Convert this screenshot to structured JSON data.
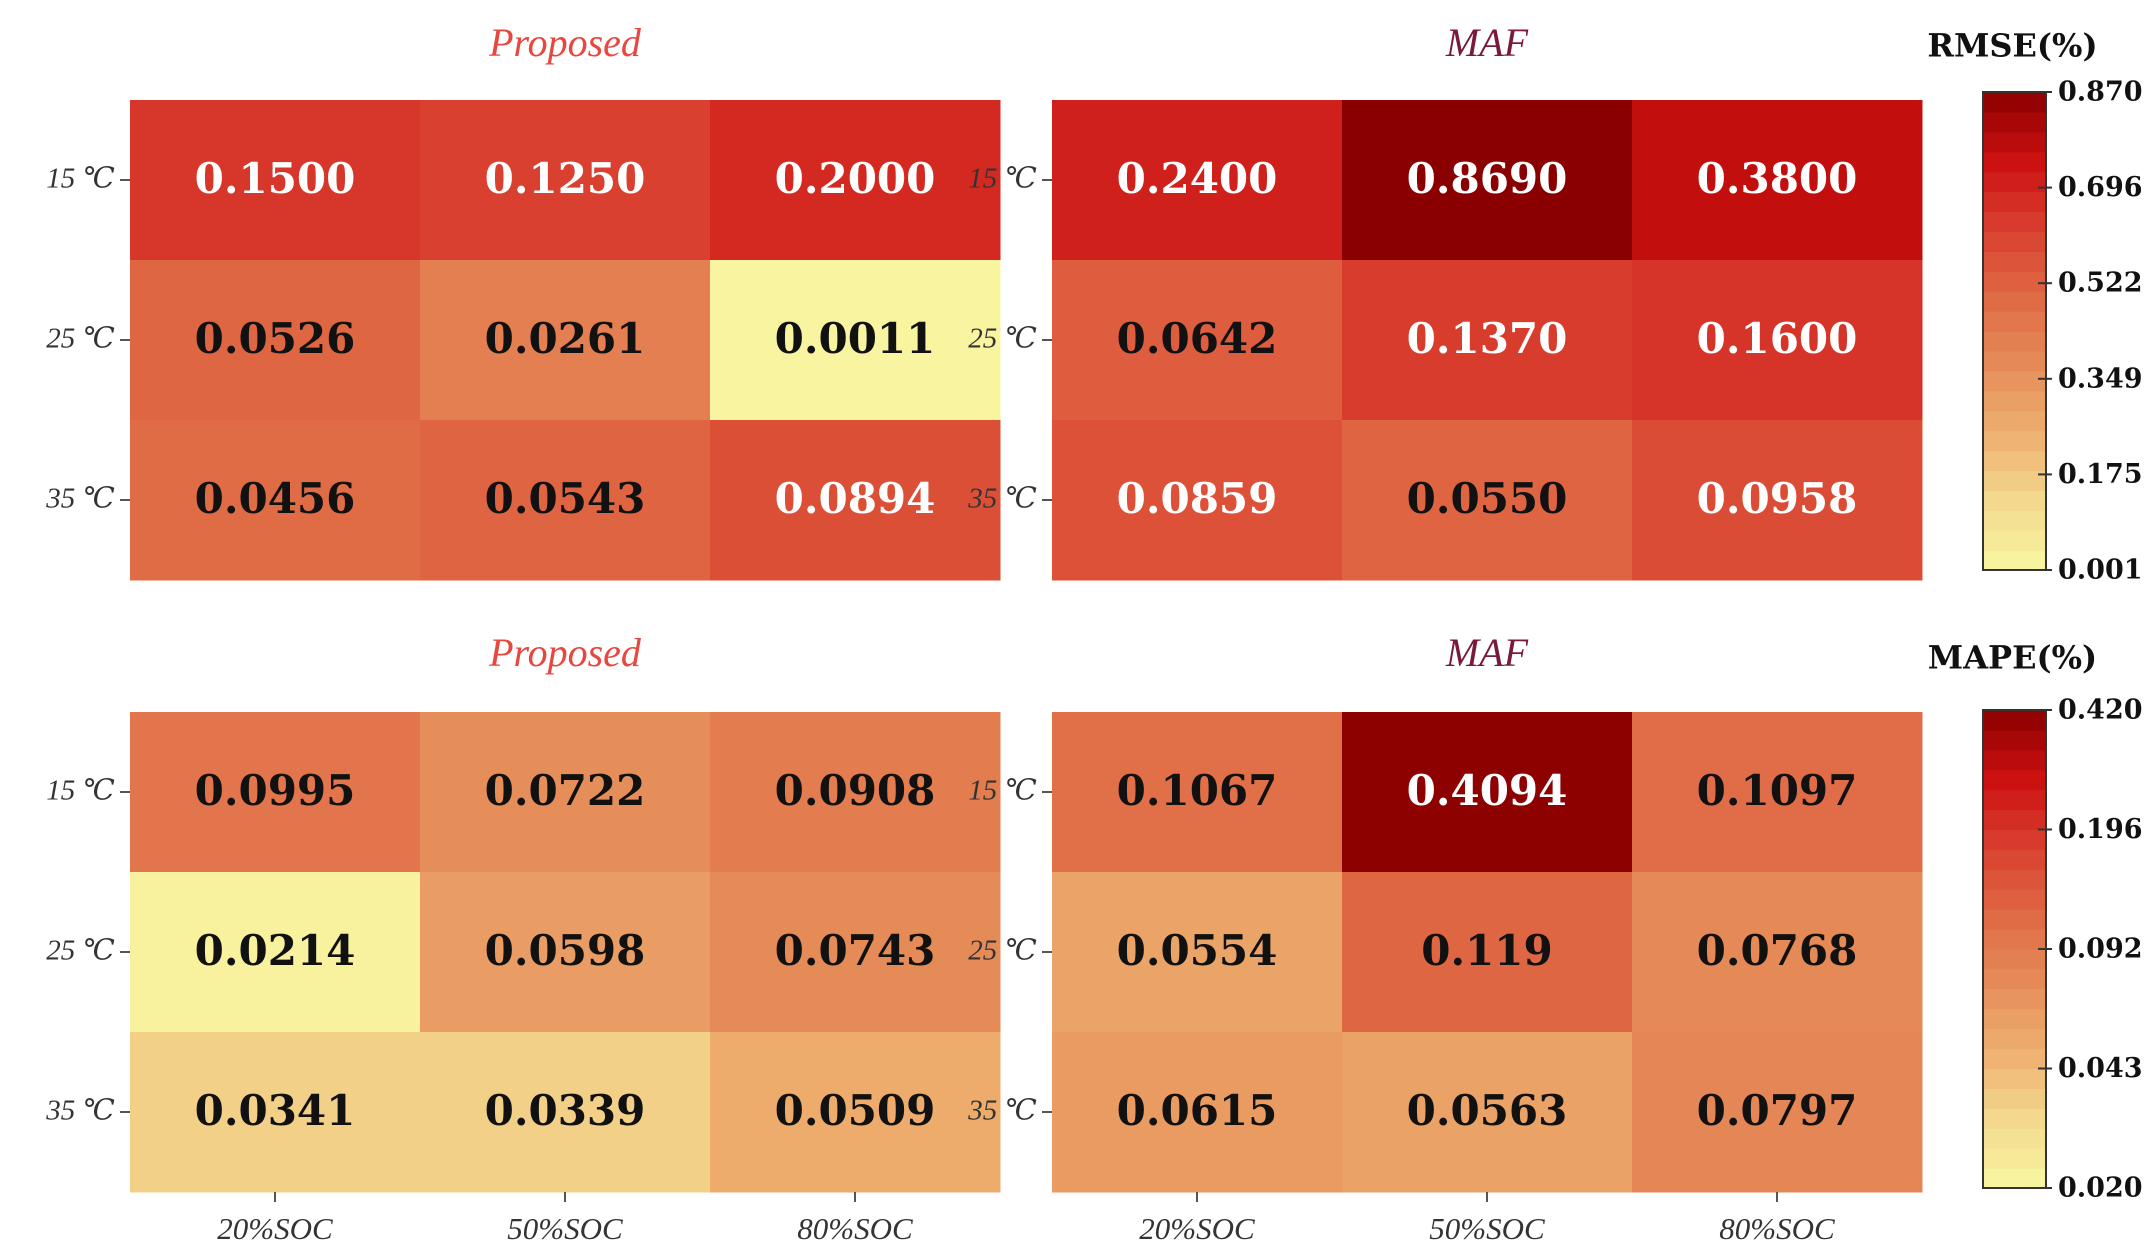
{
  "chart_data": [
    {
      "type": "heatmap",
      "metric": "RMSE",
      "title": "Proposed",
      "title_color": "#e8473f",
      "rows": [
        "15 ℃",
        "25 ℃",
        "35 ℃"
      ],
      "columns": [
        "20%SOC",
        "50%SOC",
        "80%SOC"
      ],
      "values": [
        [
          0.15,
          0.125,
          0.2
        ],
        [
          0.0526,
          0.0261,
          0.0011
        ],
        [
          0.0456,
          0.0543,
          0.0894
        ]
      ],
      "labels": [
        [
          "0.1500",
          "0.1250",
          "0.2000"
        ],
        [
          "0.0526",
          "0.0261",
          "0.0011"
        ],
        [
          "0.0456",
          "0.0543",
          "0.0894"
        ]
      ]
    },
    {
      "type": "heatmap",
      "metric": "RMSE",
      "title": "MAF",
      "title_color": "#7a1a3a",
      "rows": [
        "15 ℃",
        "25 ℃",
        "35 ℃"
      ],
      "columns": [
        "20%SOC",
        "50%SOC",
        "80%SOC"
      ],
      "values": [
        [
          0.24,
          0.869,
          0.38
        ],
        [
          0.0642,
          0.137,
          0.16
        ],
        [
          0.0859,
          0.055,
          0.0958
        ]
      ],
      "labels": [
        [
          "0.2400",
          "0.8690",
          "0.3800"
        ],
        [
          "0.0642",
          "0.1370",
          "0.1600"
        ],
        [
          "0.0859",
          "0.0550",
          "0.0958"
        ]
      ]
    },
    {
      "type": "heatmap",
      "metric": "MAPE",
      "title": "Proposed",
      "title_color": "#e8473f",
      "rows": [
        "15 ℃",
        "25 ℃",
        "35 ℃"
      ],
      "columns": [
        "20%SOC",
        "50%SOC",
        "80%SOC"
      ],
      "values": [
        [
          0.0995,
          0.0722,
          0.0908
        ],
        [
          0.0214,
          0.0598,
          0.0743
        ],
        [
          0.0341,
          0.0339,
          0.0509
        ]
      ],
      "labels": [
        [
          "0.0995",
          "0.0722",
          "0.0908"
        ],
        [
          "0.0214",
          "0.0598",
          "0.0743"
        ],
        [
          "0.0341",
          "0.0339",
          "0.0509"
        ]
      ]
    },
    {
      "type": "heatmap",
      "metric": "MAPE",
      "title": "MAF",
      "title_color": "#7a1a3a",
      "rows": [
        "15 ℃",
        "25 ℃",
        "35 ℃"
      ],
      "columns": [
        "20%SOC",
        "50%SOC",
        "80%SOC"
      ],
      "values": [
        [
          0.1067,
          0.4094,
          0.1097
        ],
        [
          0.0554,
          0.119,
          0.0768
        ],
        [
          0.0615,
          0.0563,
          0.0797
        ]
      ],
      "labels": [
        [
          "0.1067",
          "0.4094",
          "0.1097"
        ],
        [
          "0.0554",
          "0.119",
          "0.0768"
        ],
        [
          "0.0615",
          "0.0563",
          "0.0797"
        ]
      ]
    }
  ],
  "colorbars": [
    {
      "metric": "RMSE",
      "title": "RMSE(%)",
      "ticks": [
        "0.870",
        "0.696",
        "0.522",
        "0.349",
        "0.175",
        "0.001"
      ],
      "range": [
        0.001,
        0.87
      ]
    },
    {
      "metric": "MAPE",
      "title": "MAPE(%)",
      "ticks": [
        "0.420",
        "0.196",
        "0.092",
        "0.043",
        "0.020"
      ],
      "range": [
        0.02,
        0.42
      ]
    }
  ],
  "colors": {
    "scale": [
      "#f9f7a1",
      "#f3d98f",
      "#eeb070",
      "#e58c58",
      "#e06a45",
      "#d94030",
      "#cc1010",
      "#8a0000"
    ],
    "dark_text": "#111111",
    "light_text": "#ffffff"
  }
}
